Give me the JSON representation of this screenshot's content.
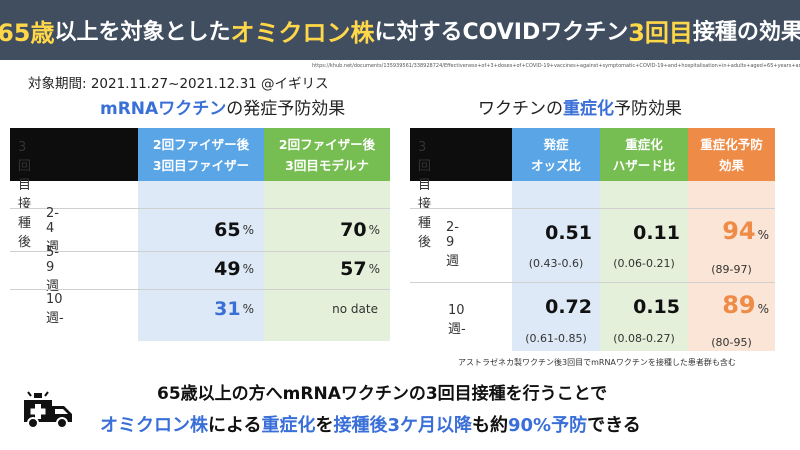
{
  "title": {
    "p1": "65歳",
    "p2": "以上を対象とした",
    "p3": "オミクロン株",
    "p4": "に対するCOVIDワクチン",
    "p5": "3回目",
    "p6": "接種の効果"
  },
  "source_url": "https://khub.net/documents/135939561/338928724/Effectiveness+of+3+doses+of+COVID-19+vaccines+against+symptomatic+COVID-19+and+hospitalisation+in+adults+aged+65+years+and+older.pdf/ab8f3558-1e16-465c-debb-5633dda8d602a",
  "period": "対象期間: 2021.11.27~2021.12.31 @イギリス",
  "left": {
    "title_bold": "mRNAワクチン",
    "title_rest": "の発症予防効果",
    "col1": [
      "2回ファイザー後",
      "3回目ファイザー"
    ],
    "col2": [
      "2回ファイザー後",
      "3回目モデルナ"
    ],
    "section_label": "3回目接種後",
    "rows": [
      {
        "label": "2-4週",
        "v1": "65",
        "u1": "%",
        "v2": "70",
        "u2": "%"
      },
      {
        "label": "5-9週",
        "v1": "49",
        "u1": "%",
        "v2": "57",
        "u2": "%"
      },
      {
        "label": "10週-",
        "v1": "31",
        "u1": "%",
        "v2": "no date",
        "u2": ""
      }
    ]
  },
  "right": {
    "title_pre": "ワクチンの",
    "title_bold": "重症化",
    "title_rest": "予防効果",
    "col1": [
      "発症",
      "オッズ比"
    ],
    "col2": [
      "重症化",
      "ハザード比"
    ],
    "col3": [
      "重症化予防",
      "効果"
    ],
    "section_label": "3回目接種後",
    "rows": [
      {
        "label": "2-9週",
        "v1": "0.51",
        "c1": "(0.43-0.6)",
        "v2": "0.11",
        "c2": "(0.06-0.21)",
        "v3": "94",
        "u3": "%",
        "c3": "(89-97)"
      },
      {
        "label": "10週-",
        "v1": "0.72",
        "c1": "(0.61-0.85)",
        "v2": "0.15",
        "c2": "(0.08-0.27)",
        "v3": "89",
        "u3": "%",
        "c3": "(80-95)"
      }
    ],
    "note": "アストラゼネカ製ワクチン後3回目でmRNAワクチンを接種した患者群も含む"
  },
  "bottom": {
    "line1": "65歳以上の方へmRNAワクチンの3回目接種を行うことで",
    "line2_a": "オミクロン株",
    "line2_b": "による",
    "line2_c": "重症化",
    "line2_d": "を",
    "line2_e": "接種後3ケ月以降",
    "line2_f": "も約",
    "line2_g": "90%予防",
    "line2_h": "できる"
  },
  "icons": {
    "ambulance": "ambulance-icon"
  },
  "colors": {
    "title_bg": "#404e60",
    "highlight": "#ffd84a",
    "accent_blue": "#3a6fd8",
    "orange": "#ee8b47",
    "green": "#76bd52",
    "blue": "#5aa5e6"
  }
}
